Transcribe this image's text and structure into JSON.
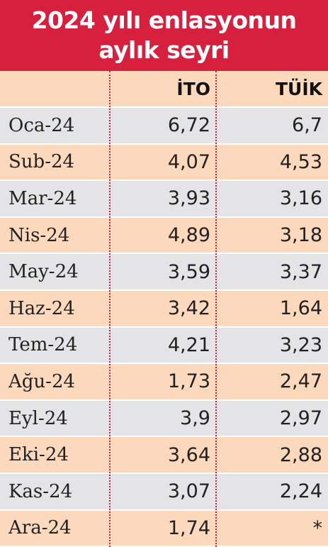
{
  "header": {
    "title": "2024 yılı enlasyonun aylık seyri"
  },
  "table": {
    "columns": [
      "İTO",
      "TÜİK"
    ],
    "rows": [
      [
        "Oca-24",
        "6,72",
        "6,7"
      ],
      [
        "Sub-24",
        "4,07",
        "4,53"
      ],
      [
        "Mar-24",
        "3,93",
        "3,16"
      ],
      [
        "Nis-24",
        "4,89",
        "3,18"
      ],
      [
        "May-24",
        "3,59",
        "3,37"
      ],
      [
        "Haz-24",
        "3,42",
        "1,64"
      ],
      [
        "Tem-24",
        "4,21",
        "3,23"
      ],
      [
        "Ağu-24",
        "1,73",
        "2,47"
      ],
      [
        "Eyl-24",
        "3,9",
        "2,97"
      ],
      [
        "Eki-24",
        "3,64",
        "2,88"
      ],
      [
        "Kas-24",
        "3,07",
        "2,24"
      ],
      [
        "Ara-24",
        "1,74",
        "*"
      ]
    ]
  }
}
